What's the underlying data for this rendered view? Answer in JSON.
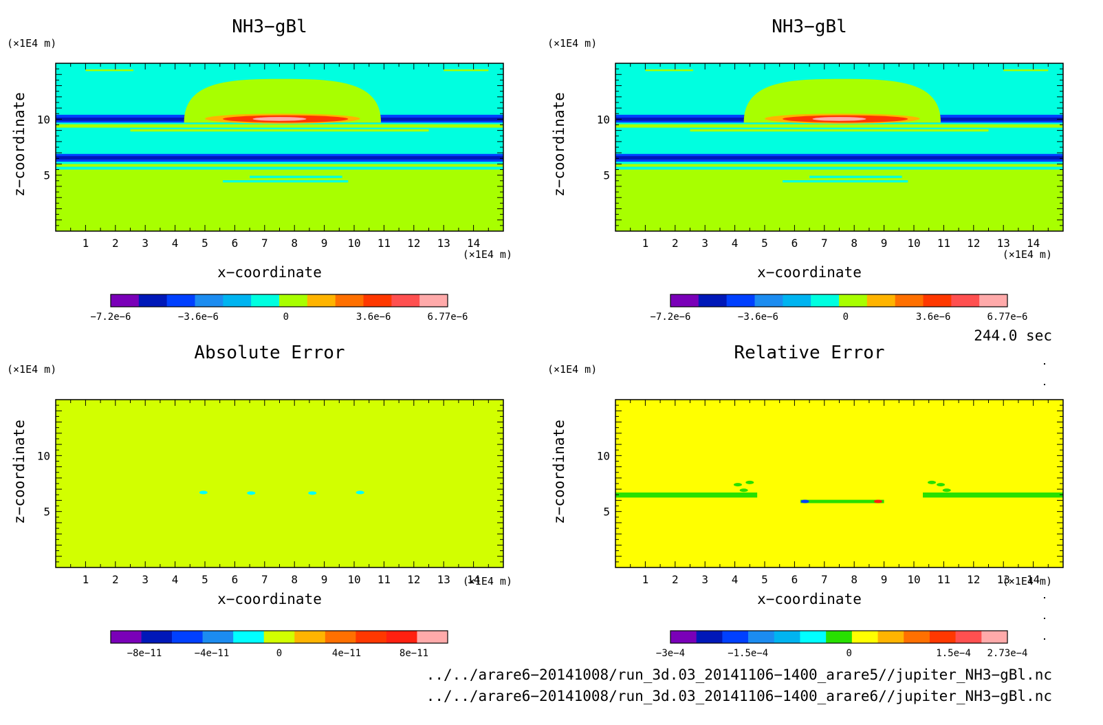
{
  "colors": {
    "purple": "#7a00b8",
    "navy": "#0018b8",
    "blue": "#0040ff",
    "mid_blue": "#1c8cf0",
    "sky": "#00b4f0",
    "cyan": "#00ffe0",
    "aqua": "#00ffff",
    "lime": "#a8ff00",
    "yellow_green": "#d2ff00",
    "green": "#28e000",
    "yellow": "#ffff00",
    "amber": "#ffb400",
    "orange": "#ff7000",
    "red_orange": "#ff3800",
    "red": "#ff2010",
    "salmon": "#ff5050",
    "pink": "#ffaaaa"
  },
  "chart_data": [
    {
      "type": "heatmap",
      "title": "NH3−gBl",
      "xlabel": "x−coordinate",
      "ylabel": "z−coordinate",
      "x_unit": "(×1E4 m)",
      "y_unit": "(×1E4 m)",
      "x_ticks": [
        "1",
        "2",
        "3",
        "4",
        "5",
        "6",
        "7",
        "8",
        "9",
        "10",
        "11",
        "12",
        "13",
        "14"
      ],
      "y_ticks": [
        "5",
        "10"
      ],
      "xlim": [
        0,
        15
      ],
      "ylim": [
        0,
        15
      ],
      "background": "lime",
      "bands": [
        {
          "z": [
            5.5,
            15.0
          ],
          "color": "cyan"
        },
        {
          "z": [
            14.3,
            14.45
          ],
          "color": "lime",
          "x": [
            1.0,
            2.6
          ]
        },
        {
          "z": [
            14.3,
            14.45
          ],
          "color": "lime",
          "x": [
            13.0,
            14.5
          ]
        },
        {
          "z": [
            9.7,
            10.4
          ],
          "color": "blue"
        },
        {
          "z": [
            9.85,
            10.15
          ],
          "color": "navy"
        },
        {
          "z": [
            9.25,
            9.55
          ],
          "color": "lime"
        },
        {
          "z": [
            8.9,
            9.1
          ],
          "color": "lime",
          "x": [
            2.5,
            12.5
          ]
        },
        {
          "z": [
            6.2,
            6.9
          ],
          "color": "blue"
        },
        {
          "z": [
            6.4,
            6.7
          ],
          "color": "navy"
        },
        {
          "z": [
            5.75,
            6.0
          ],
          "color": "lime"
        },
        {
          "z": [
            5.2,
            5.45
          ],
          "color": "lime"
        },
        {
          "z": [
            4.75,
            4.95
          ],
          "color": "cyan",
          "x": [
            6.5,
            9.6
          ]
        },
        {
          "z": [
            4.35,
            4.55
          ],
          "color": "cyan",
          "x": [
            5.6,
            9.8
          ]
        }
      ],
      "dome": {
        "x": [
          4.3,
          10.9
        ],
        "z": [
          9.7,
          13.6
        ],
        "color": "lime"
      },
      "core": [
        {
          "x": [
            5.0,
            10.2
          ],
          "z": [
            9.6,
            10.5
          ],
          "color": "amber"
        },
        {
          "x": [
            5.6,
            9.8
          ],
          "z": [
            9.7,
            10.35
          ],
          "color": "red_orange"
        },
        {
          "x": [
            6.6,
            8.4
          ],
          "z": [
            9.85,
            10.2
          ],
          "color": "pink"
        }
      ],
      "colorbar": {
        "colors": [
          "purple",
          "navy",
          "blue",
          "mid_blue",
          "sky",
          "cyan",
          "lime",
          "amber",
          "orange",
          "red_orange",
          "salmon",
          "pink"
        ],
        "labels": [
          "−7.2e−6",
          "−3.6e−6",
          "0",
          "3.6e−6",
          "6.77e−6"
        ],
        "label_fracs": [
          0.0,
          0.26,
          0.52,
          0.78,
          1.0
        ]
      }
    },
    {
      "type": "heatmap",
      "title": "NH3−gBl",
      "xlabel": "x−coordinate",
      "ylabel": "z−coordinate",
      "x_unit": "(×1E4 m)",
      "y_unit": "(×1E4 m)",
      "x_ticks": [
        "1",
        "2",
        "3",
        "4",
        "5",
        "6",
        "7",
        "8",
        "9",
        "10",
        "11",
        "12",
        "13",
        "14"
      ],
      "y_ticks": [
        "5",
        "10"
      ],
      "xlim": [
        0,
        15
      ],
      "ylim": [
        0,
        15
      ],
      "background": "lime",
      "bands": [
        {
          "z": [
            5.5,
            15.0
          ],
          "color": "cyan"
        },
        {
          "z": [
            14.3,
            14.45
          ],
          "color": "lime",
          "x": [
            1.0,
            2.6
          ]
        },
        {
          "z": [
            14.3,
            14.45
          ],
          "color": "lime",
          "x": [
            13.0,
            14.5
          ]
        },
        {
          "z": [
            9.7,
            10.4
          ],
          "color": "blue"
        },
        {
          "z": [
            9.85,
            10.15
          ],
          "color": "navy"
        },
        {
          "z": [
            9.25,
            9.55
          ],
          "color": "lime"
        },
        {
          "z": [
            8.9,
            9.1
          ],
          "color": "lime",
          "x": [
            2.5,
            12.5
          ]
        },
        {
          "z": [
            6.2,
            6.9
          ],
          "color": "blue"
        },
        {
          "z": [
            6.4,
            6.7
          ],
          "color": "navy"
        },
        {
          "z": [
            5.75,
            6.0
          ],
          "color": "lime"
        },
        {
          "z": [
            5.2,
            5.45
          ],
          "color": "lime"
        },
        {
          "z": [
            4.75,
            4.95
          ],
          "color": "cyan",
          "x": [
            6.5,
            9.6
          ]
        },
        {
          "z": [
            4.35,
            4.55
          ],
          "color": "cyan",
          "x": [
            5.6,
            9.8
          ]
        }
      ],
      "dome": {
        "x": [
          4.3,
          10.9
        ],
        "z": [
          9.7,
          13.6
        ],
        "color": "lime"
      },
      "core": [
        {
          "x": [
            5.0,
            10.2
          ],
          "z": [
            9.6,
            10.5
          ],
          "color": "amber"
        },
        {
          "x": [
            5.6,
            9.8
          ],
          "z": [
            9.7,
            10.35
          ],
          "color": "red_orange"
        },
        {
          "x": [
            6.6,
            8.4
          ],
          "z": [
            9.85,
            10.2
          ],
          "color": "pink"
        }
      ],
      "colorbar": {
        "colors": [
          "purple",
          "navy",
          "blue",
          "mid_blue",
          "sky",
          "cyan",
          "lime",
          "amber",
          "orange",
          "red_orange",
          "salmon",
          "pink"
        ],
        "labels": [
          "−7.2e−6",
          "−3.6e−6",
          "0",
          "3.6e−6",
          "6.77e−6"
        ],
        "label_fracs": [
          0.0,
          0.26,
          0.52,
          0.78,
          1.0
        ]
      }
    },
    {
      "type": "heatmap",
      "title": "Absolute Error",
      "xlabel": "x−coordinate",
      "ylabel": "z−coordinate",
      "x_unit": "(×1E4 m)",
      "y_unit": "(×1E4 m)",
      "x_ticks": [
        "1",
        "2",
        "3",
        "4",
        "5",
        "6",
        "7",
        "8",
        "9",
        "10",
        "11",
        "12",
        "13",
        "14"
      ],
      "y_ticks": [
        "5",
        "10"
      ],
      "xlim": [
        0,
        15
      ],
      "ylim": [
        0,
        15
      ],
      "background": "yellow_green",
      "bands": [],
      "spots": [
        {
          "x": 4.95,
          "z": 6.7,
          "color": "aqua"
        },
        {
          "x": 6.55,
          "z": 6.65,
          "color": "aqua"
        },
        {
          "x": 8.6,
          "z": 6.65,
          "color": "aqua"
        },
        {
          "x": 10.2,
          "z": 6.7,
          "color": "aqua"
        }
      ],
      "colorbar": {
        "colors": [
          "purple",
          "navy",
          "blue",
          "mid_blue",
          "aqua",
          "yellow_green",
          "amber",
          "orange",
          "red_orange",
          "red",
          "pink"
        ],
        "labels": [
          "−8e−11",
          "−4e−11",
          "0",
          "4e−11",
          "8e−11"
        ],
        "label_fracs": [
          0.1,
          0.3,
          0.5,
          0.7,
          0.9
        ]
      }
    },
    {
      "type": "heatmap",
      "title": "Relative Error",
      "xlabel": "x−coordinate",
      "ylabel": "z−coordinate",
      "x_unit": "(×1E4 m)",
      "y_unit": "(×1E4 m)",
      "x_ticks": [
        "1",
        "2",
        "3",
        "4",
        "5",
        "6",
        "7",
        "8",
        "9",
        "10",
        "11",
        "12",
        "13",
        "14"
      ],
      "y_ticks": [
        "5",
        "10"
      ],
      "xlim": [
        0,
        15
      ],
      "ylim": [
        0,
        15
      ],
      "background": "yellow",
      "bands": [
        {
          "z": [
            6.25,
            6.7
          ],
          "color": "green",
          "x": [
            0.0,
            4.75
          ]
        },
        {
          "z": [
            6.25,
            6.7
          ],
          "color": "green",
          "x": [
            10.3,
            15.0
          ]
        },
        {
          "z": [
            5.75,
            6.05
          ],
          "color": "green",
          "x": [
            6.2,
            9.0
          ]
        }
      ],
      "spots": [
        {
          "x": 4.1,
          "z": 7.4,
          "color": "green"
        },
        {
          "x": 4.5,
          "z": 7.6,
          "color": "green"
        },
        {
          "x": 4.3,
          "z": 6.9,
          "color": "green"
        },
        {
          "x": 10.9,
          "z": 7.4,
          "color": "green"
        },
        {
          "x": 10.6,
          "z": 7.6,
          "color": "green"
        },
        {
          "x": 11.1,
          "z": 6.9,
          "color": "green"
        },
        {
          "x": 6.35,
          "z": 5.9,
          "color": "blue"
        },
        {
          "x": 8.8,
          "z": 5.9,
          "color": "red"
        }
      ],
      "colorbar": {
        "colors": [
          "purple",
          "navy",
          "blue",
          "mid_blue",
          "sky",
          "aqua",
          "green",
          "yellow",
          "amber",
          "orange",
          "red_orange",
          "salmon",
          "pink"
        ],
        "labels": [
          "−3e−4",
          "−1.5e−4",
          "0",
          "1.5e−4",
          "2.73e−4"
        ],
        "label_fracs": [
          0.0,
          0.23,
          0.53,
          0.84,
          1.0
        ]
      }
    }
  ],
  "time_label": "244.0 sec",
  "file_paths": [
    "../../arare6−20141008/run_3d.03_20141106−1400_arare5//jupiter_NH3−gBl.nc",
    "../../arare6−20141008/run_3d.03_20141106−1400_arare6//jupiter_NH3−gBl.nc"
  ]
}
